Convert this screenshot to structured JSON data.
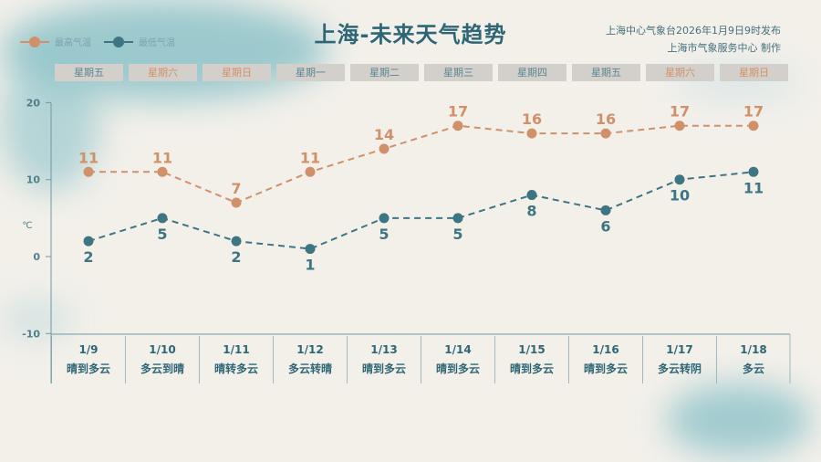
{
  "title": "上海-未来天气趋势",
  "source_line1": "上海中心气象台2026年1月9日9时发布",
  "source_line2": "上海市气象服务中心  制作",
  "colors": {
    "high": "#d0916a",
    "low": "#3e7582",
    "weekend": "#d0916a",
    "weekday": "#5a8592"
  },
  "chart_data": {
    "type": "line",
    "legend": [
      "最高气温",
      "最低气温"
    ],
    "legend_position": "top-left",
    "ylabel": "℃",
    "ylim": [
      -10,
      20
    ],
    "yticks": [
      "20",
      "10",
      "0",
      "-10"
    ],
    "weekdays": [
      "星期五",
      "星期六",
      "星期日",
      "星期一",
      "星期二",
      "星期三",
      "星期四",
      "星期五",
      "星期六",
      "星期日"
    ],
    "weekend": [
      false,
      true,
      true,
      false,
      false,
      false,
      false,
      false,
      true,
      true
    ],
    "categories": [
      "1/9",
      "1/10",
      "1/11",
      "1/12",
      "1/13",
      "1/14",
      "1/15",
      "1/16",
      "1/17",
      "1/18"
    ],
    "weather": [
      "晴到多云",
      "多云到晴",
      "晴转多云",
      "多云转晴",
      "晴到多云",
      "晴到多云",
      "晴到多云",
      "晴到多云",
      "多云转阴",
      "多云"
    ],
    "series": [
      {
        "name": "最高气温",
        "values": [
          11,
          11,
          7,
          11,
          14,
          17,
          16,
          16,
          17,
          17
        ]
      },
      {
        "name": "最低气温",
        "values": [
          2,
          5,
          2,
          1,
          5,
          5,
          8,
          6,
          10,
          11
        ]
      }
    ]
  }
}
